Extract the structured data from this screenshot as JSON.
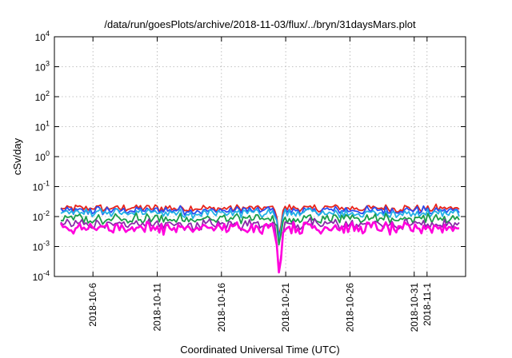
{
  "chart_data": {
    "type": "line",
    "title": "/data/run/goesPlots/archive/2018-11-03/flux/../bryn/31daysMars.plot",
    "xlabel": "Coordinated Universal Time (UTC)",
    "ylabel": "cSv/day",
    "yscale": "log",
    "ylim": [
      0.0001,
      10000
    ],
    "xlim": [
      "2018-10-03",
      "2018-11-04"
    ],
    "grid": true,
    "x_ticks": [
      "2018-10-6",
      "2018-10-11",
      "2018-10-16",
      "2018-10-21",
      "2018-10-26",
      "2018-10-31",
      "2018-11-1"
    ],
    "y_ticks": [
      {
        "base": "10",
        "exp": "-4"
      },
      {
        "base": "10",
        "exp": "-3"
      },
      {
        "base": "10",
        "exp": "-2"
      },
      {
        "base": "10",
        "exp": "-1"
      },
      {
        "base": "10",
        "exp": "0"
      },
      {
        "base": "10",
        "exp": "1"
      },
      {
        "base": "10",
        "exp": "2"
      },
      {
        "base": "10",
        "exp": "3"
      },
      {
        "base": "10",
        "exp": "4"
      }
    ],
    "x_start": "2018-10-03T12:00",
    "x_end": "2018-11-03T12:00",
    "series": [
      {
        "color": "#e8231a",
        "level": 0.019
      },
      {
        "color": "#2a4df0",
        "level": 0.016
      },
      {
        "color": "#22b0e6",
        "level": 0.013
      },
      {
        "color": "#1a9e4a",
        "level": 0.0085
      },
      {
        "color": "#8a2aa8",
        "level": 0.0055
      },
      {
        "color": "#ff00dd",
        "level": 0.0042
      }
    ],
    "dip": {
      "date": "2018-10-20",
      "min": 0.0001
    }
  }
}
